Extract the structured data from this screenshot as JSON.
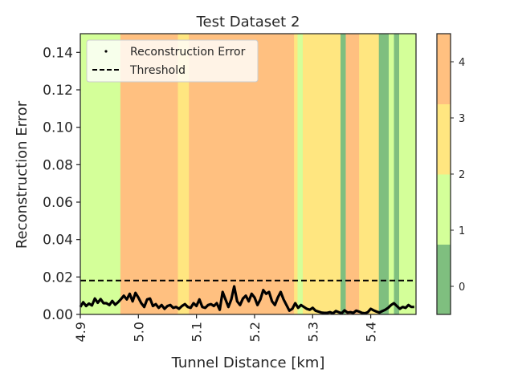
{
  "chart_data": {
    "type": "line",
    "title": "Test Dataset 2",
    "xlabel": "Tunnel Distance [km]",
    "ylabel": "Reconstruction Error",
    "xlim": [
      4.9,
      5.478
    ],
    "ylim": [
      0,
      0.15
    ],
    "x_ticks": [
      "4.9",
      "5.0",
      "5.1",
      "5.2",
      "5.3",
      "5.4"
    ],
    "y_ticks": [
      "0.00",
      "0.02",
      "0.04",
      "0.06",
      "0.08",
      "0.10",
      "0.12",
      "0.14"
    ],
    "threshold": 0.0181,
    "legend": {
      "placement": "top-left",
      "entries": [
        "Reconstruction Error",
        "Threshold"
      ]
    },
    "colorbar": {
      "ticks": [
        "0",
        "1",
        "2",
        "3",
        "4"
      ],
      "colors": [
        "#7fbf7f",
        "#d4ff99",
        "#ffe680",
        "#ffc080"
      ]
    },
    "class_colors": [
      "#7fbf7f",
      "#d4ff99",
      "#ffe680",
      "#ffc080",
      "#ffc080"
    ],
    "background_bands": [
      {
        "x0": 4.9,
        "x1": 4.969,
        "class": 1
      },
      {
        "x0": 4.969,
        "x1": 5.053,
        "class": 3
      },
      {
        "x0": 5.053,
        "x1": 5.062,
        "class": 4
      },
      {
        "x0": 5.062,
        "x1": 5.068,
        "class": 3
      },
      {
        "x0": 5.068,
        "x1": 5.087,
        "class": 2
      },
      {
        "x0": 5.087,
        "x1": 5.128,
        "class": 3
      },
      {
        "x0": 5.128,
        "x1": 5.137,
        "class": 4
      },
      {
        "x0": 5.137,
        "x1": 5.154,
        "class": 3
      },
      {
        "x0": 5.154,
        "x1": 5.162,
        "class": 4
      },
      {
        "x0": 5.162,
        "x1": 5.17,
        "class": 3
      },
      {
        "x0": 5.17,
        "x1": 5.268,
        "class": 3
      },
      {
        "x0": 5.268,
        "x1": 5.274,
        "class": 2
      },
      {
        "x0": 5.274,
        "x1": 5.283,
        "class": 1
      },
      {
        "x0": 5.283,
        "x1": 5.348,
        "class": 2
      },
      {
        "x0": 5.348,
        "x1": 5.357,
        "class": 0
      },
      {
        "x0": 5.357,
        "x1": 5.366,
        "class": 3
      },
      {
        "x0": 5.366,
        "x1": 5.372,
        "class": 4
      },
      {
        "x0": 5.372,
        "x1": 5.38,
        "class": 3
      },
      {
        "x0": 5.38,
        "x1": 5.414,
        "class": 2
      },
      {
        "x0": 5.414,
        "x1": 5.431,
        "class": 0
      },
      {
        "x0": 5.431,
        "x1": 5.44,
        "class": 1
      },
      {
        "x0": 5.44,
        "x1": 5.449,
        "class": 0
      },
      {
        "x0": 5.449,
        "x1": 5.478,
        "class": 1
      }
    ],
    "series": [
      {
        "name": "Reconstruction Error",
        "x": [
          4.9,
          4.905,
          4.91,
          4.915,
          4.92,
          4.925,
          4.93,
          4.935,
          4.94,
          4.945,
          4.95,
          4.955,
          4.96,
          4.965,
          4.97,
          4.975,
          4.98,
          4.985,
          4.99,
          4.995,
          5.0,
          5.005,
          5.01,
          5.015,
          5.02,
          5.025,
          5.03,
          5.035,
          5.04,
          5.045,
          5.05,
          5.055,
          5.06,
          5.065,
          5.07,
          5.075,
          5.08,
          5.085,
          5.09,
          5.095,
          5.1,
          5.105,
          5.11,
          5.115,
          5.12,
          5.125,
          5.13,
          5.135,
          5.14,
          5.145,
          5.15,
          5.155,
          5.16,
          5.165,
          5.17,
          5.175,
          5.18,
          5.185,
          5.19,
          5.195,
          5.2,
          5.205,
          5.21,
          5.215,
          5.22,
          5.225,
          5.23,
          5.235,
          5.24,
          5.245,
          5.25,
          5.255,
          5.26,
          5.265,
          5.27,
          5.275,
          5.28,
          5.285,
          5.29,
          5.295,
          5.3,
          5.305,
          5.31,
          5.315,
          5.32,
          5.325,
          5.33,
          5.335,
          5.34,
          5.345,
          5.35,
          5.355,
          5.36,
          5.365,
          5.37,
          5.375,
          5.38,
          5.385,
          5.39,
          5.395,
          5.4,
          5.405,
          5.41,
          5.415,
          5.42,
          5.425,
          5.43,
          5.435,
          5.44,
          5.445,
          5.45,
          5.455,
          5.46,
          5.465,
          5.47,
          5.475
        ],
        "y": [
          0.004,
          0.0065,
          0.0045,
          0.0058,
          0.0048,
          0.0085,
          0.0062,
          0.0082,
          0.006,
          0.006,
          0.005,
          0.0072,
          0.0052,
          0.0065,
          0.0082,
          0.01,
          0.008,
          0.011,
          0.007,
          0.0115,
          0.009,
          0.006,
          0.004,
          0.008,
          0.0085,
          0.0045,
          0.0055,
          0.0035,
          0.005,
          0.003,
          0.0045,
          0.005,
          0.0035,
          0.004,
          0.003,
          0.0045,
          0.0055,
          0.004,
          0.0035,
          0.006,
          0.0045,
          0.008,
          0.004,
          0.0035,
          0.005,
          0.0055,
          0.0045,
          0.006,
          0.0025,
          0.012,
          0.008,
          0.004,
          0.008,
          0.015,
          0.007,
          0.005,
          0.0085,
          0.01,
          0.007,
          0.011,
          0.009,
          0.005,
          0.008,
          0.013,
          0.011,
          0.012,
          0.007,
          0.005,
          0.009,
          0.012,
          0.008,
          0.005,
          0.002,
          0.003,
          0.006,
          0.0035,
          0.005,
          0.004,
          0.003,
          0.0025,
          0.0035,
          0.002,
          0.0015,
          0.001,
          0.0008,
          0.0008,
          0.0012,
          0.0006,
          0.0018,
          0.0012,
          0.0006,
          0.0022,
          0.001,
          0.0012,
          0.0008,
          0.002,
          0.0015,
          0.0008,
          0.0006,
          0.0012,
          0.003,
          0.0022,
          0.0015,
          0.001,
          0.0018,
          0.0025,
          0.0035,
          0.005,
          0.006,
          0.0045,
          0.003,
          0.004,
          0.0035,
          0.005,
          0.004,
          0.004
        ]
      },
      {
        "name": "Threshold",
        "constant": 0.0181
      }
    ],
    "grid": false
  }
}
